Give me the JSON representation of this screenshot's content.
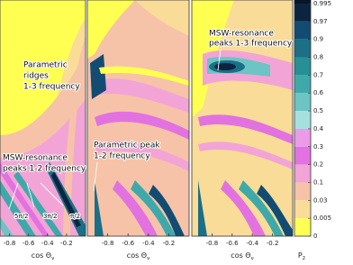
{
  "chart_data": [
    {
      "type": "contour",
      "xlim": [
        -0.9,
        0
      ],
      "xticks": [
        -0.8,
        -0.6,
        -0.4,
        -0.2
      ],
      "xlabel": "cos Θ",
      "xlabel_sub": "ν",
      "annotations": [
        [
          "Parametric",
          "ridges",
          "1-3 frequency"
        ],
        [
          "MSW-resonance",
          "peaks 1-2 frequency"
        ],
        [
          "5π/2"
        ],
        [
          "3π/2"
        ],
        [
          "π/2"
        ]
      ]
    },
    {
      "type": "contour",
      "xlim": [
        -1,
        0
      ],
      "xticks": [
        -0.8,
        -0.6,
        -0.4,
        -0.2
      ],
      "xlabel": "cos Θ",
      "xlabel_sub": "ν",
      "annotations": [
        [
          "Parametric peak",
          "1-2 frequency"
        ]
      ]
    },
    {
      "type": "contour",
      "xlim": [
        -1,
        0
      ],
      "xticks": [
        -0.8,
        -0.6,
        -0.4,
        -0.2
      ],
      "xlabel": "cos Θ",
      "xlabel_sub": "ν",
      "annotations": [
        [
          "MSW-resonance",
          "peaks 1-3 frequency"
        ]
      ]
    }
  ],
  "colorbar": {
    "label": "P",
    "label_sub": "2",
    "levels": [
      0.995,
      0.97,
      0.9,
      0.8,
      0.7,
      0.6,
      0.5,
      0.4,
      0.3,
      0.2,
      0.1,
      0.03,
      0.005,
      0
    ],
    "colors": [
      "#0b2440",
      "#124c72",
      "#1b6f86",
      "#278f96",
      "#3fa9aa",
      "#6cc4c4",
      "#a4e0de",
      "#ec9be8",
      "#e272e0",
      "#f2a4d6",
      "#f6c3a8",
      "#f9dc98",
      "#ffff52"
    ]
  }
}
